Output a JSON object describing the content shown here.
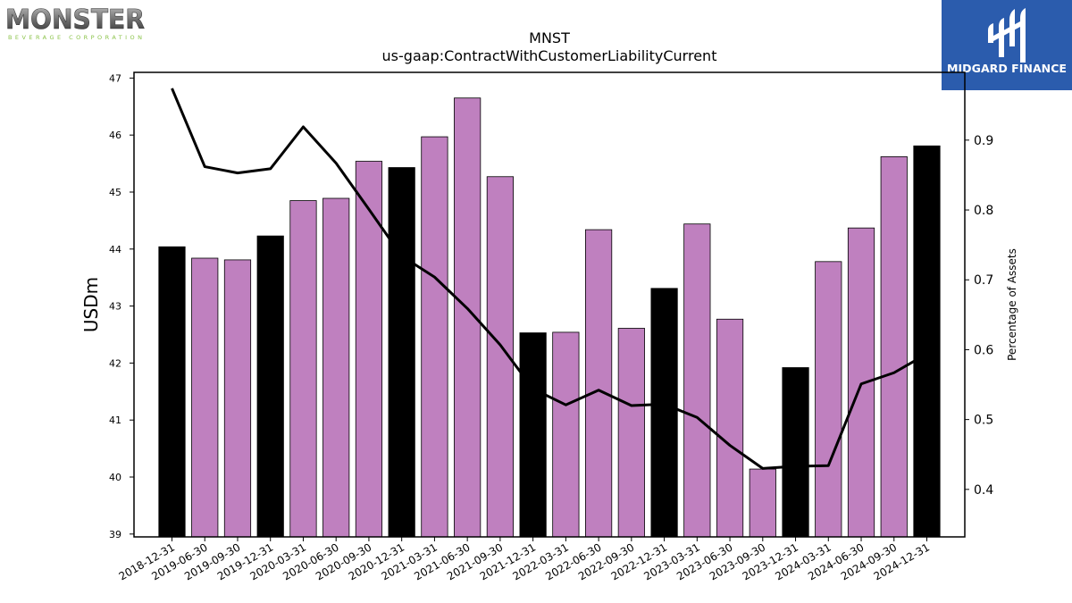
{
  "brand": {
    "company_logo_text": "MONSTER",
    "company_logo_subtext": "BEVERAGE CORPORATION",
    "publisher_name": "MIDGARD FINANCE",
    "publisher_color": "#2b5cad"
  },
  "chart_data": {
    "type": "bar",
    "title": "MNST",
    "subtitle": "us-gaap:ContractWithCustomerLiabilityCurrent",
    "ylabel": "USDm",
    "y2label": "Percentage of Assets",
    "ylim": [
      38.95,
      47.1
    ],
    "y2lim": [
      0.332,
      0.997
    ],
    "yticks": [
      "39",
      "40",
      "41",
      "42",
      "43",
      "44",
      "45",
      "46",
      "47"
    ],
    "y2ticks": [
      "0.4",
      "0.5",
      "0.6",
      "0.7",
      "0.8",
      "0.9"
    ],
    "categories": [
      "2018-12-31",
      "2019-06-30",
      "2019-09-30",
      "2019-12-31",
      "2020-03-31",
      "2020-06-30",
      "2020-09-30",
      "2020-12-31",
      "2021-03-31",
      "2021-06-30",
      "2021-09-30",
      "2021-12-31",
      "2022-03-31",
      "2022-06-30",
      "2022-09-30",
      "2022-12-31",
      "2023-03-31",
      "2023-06-30",
      "2023-09-30",
      "2023-12-31",
      "2024-03-31",
      "2024-06-30",
      "2024-09-30",
      "2024-12-31"
    ],
    "series": [
      {
        "kind": "bar",
        "values": [
          44.04,
          43.84,
          43.81,
          44.23,
          44.85,
          44.89,
          45.54,
          45.43,
          45.97,
          46.65,
          45.27,
          42.53,
          42.54,
          44.34,
          42.61,
          43.31,
          44.44,
          42.77,
          40.14,
          41.92,
          43.78,
          44.37,
          45.62,
          45.81
        ],
        "colors": [
          "#000000",
          "#bf80bf",
          "#bf80bf",
          "#000000",
          "#bf80bf",
          "#bf80bf",
          "#bf80bf",
          "#000000",
          "#bf80bf",
          "#bf80bf",
          "#bf80bf",
          "#000000",
          "#bf80bf",
          "#bf80bf",
          "#bf80bf",
          "#000000",
          "#bf80bf",
          "#bf80bf",
          "#bf80bf",
          "#000000",
          "#bf80bf",
          "#bf80bf",
          "#bf80bf",
          "#000000"
        ]
      },
      {
        "kind": "line",
        "axis": "right",
        "color": "#000000",
        "values": [
          0.974,
          0.862,
          0.853,
          0.859,
          0.919,
          0.867,
          0.801,
          0.734,
          0.704,
          0.659,
          0.607,
          0.544,
          0.521,
          0.542,
          0.52,
          0.522,
          0.503,
          0.463,
          0.43,
          0.433,
          0.434,
          0.551,
          0.567,
          0.594
        ]
      }
    ],
    "legend": "none",
    "grid": false
  }
}
